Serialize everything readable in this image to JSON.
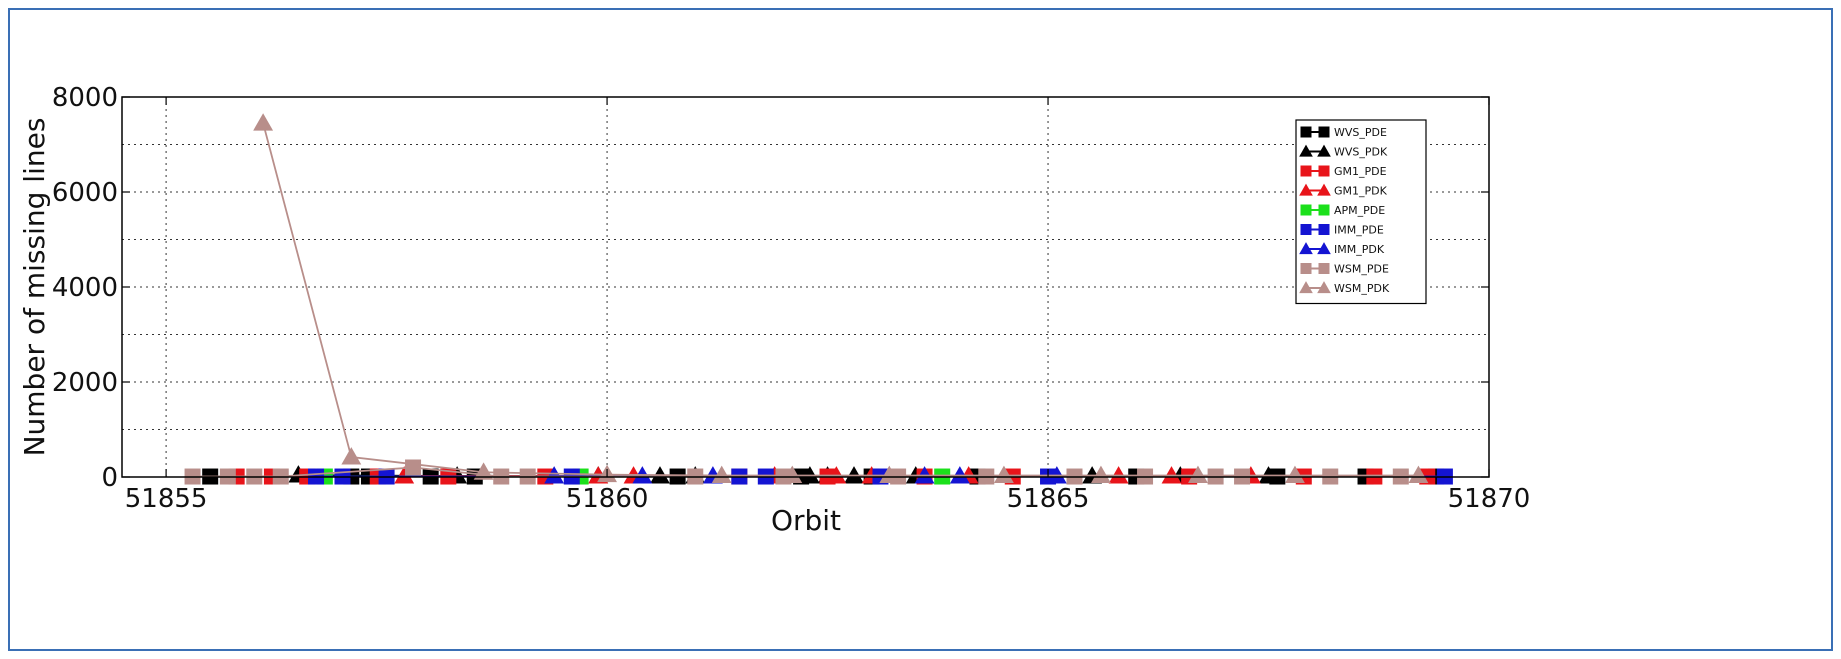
{
  "chart_data": {
    "type": "line",
    "title": "",
    "xlabel": "Orbit",
    "ylabel": "Number of missing lines",
    "xlim": [
      51854.5,
      51870
    ],
    "ylim": [
      0,
      8000
    ],
    "xticks": [
      51855,
      51860,
      51865,
      51870
    ],
    "xtick_labels": [
      "51855",
      "51860",
      "51865",
      "51870"
    ],
    "yticks": [
      0,
      2000,
      4000,
      6000,
      8000
    ],
    "ytick_labels": [
      "0",
      "2000",
      "4000",
      "6000",
      "8000"
    ],
    "grid": true,
    "legend_position": "top-right",
    "series": [
      {
        "name": "WVS_PDE",
        "color": "#000000",
        "marker": "square",
        "x": [
          51855.5,
          51857.1,
          51857.3,
          51858.0,
          51858.5,
          51860.8,
          51862.2,
          51863.0,
          51864.2,
          51866.0,
          51867.6,
          51868.6,
          51869.4
        ],
        "y": [
          10,
          10,
          10,
          10,
          10,
          10,
          10,
          10,
          10,
          10,
          10,
          10,
          10
        ]
      },
      {
        "name": "WVS_PDK",
        "color": "#000000",
        "marker": "triangle",
        "x": [
          51856.5,
          51858.3,
          51859.9,
          51860.6,
          51861.0,
          51862.3,
          51862.5,
          51862.8,
          51863.5,
          51865.5,
          51866.5,
          51867.5
        ],
        "y": [
          40,
          20,
          20,
          20,
          20,
          20,
          20,
          20,
          20,
          20,
          20,
          20
        ]
      },
      {
        "name": "GM1_PDE",
        "color": "#e8141a",
        "marker": "square",
        "x": [
          51855.8,
          51856.2,
          51856.6,
          51857.4,
          51858.2,
          51859.3,
          51861.5,
          51862.5,
          51863.6,
          51864.6,
          51866.6,
          51867.9,
          51868.7,
          51869.3
        ],
        "y": [
          10,
          10,
          10,
          10,
          10,
          10,
          10,
          10,
          10,
          10,
          10,
          10,
          10,
          10
        ]
      },
      {
        "name": "GM1_PDK",
        "color": "#e8141a",
        "marker": "triangle",
        "x": [
          51857.7,
          51859.9,
          51860.3,
          51861.9,
          51862.6,
          51863.0,
          51864.1,
          51865.8,
          51866.4,
          51867.3
        ],
        "y": [
          20,
          20,
          20,
          20,
          20,
          20,
          20,
          20,
          20,
          20
        ]
      },
      {
        "name": "APM_PDE",
        "color": "#1be01b",
        "marker": "square",
        "x": [
          51856.8,
          51859.7,
          51863.8
        ],
        "y": [
          10,
          10,
          10
        ]
      },
      {
        "name": "IMM_PDE",
        "color": "#1414d2",
        "marker": "square",
        "x": [
          51856.7,
          51857.0,
          51857.5,
          51859.6,
          51861.5,
          51861.8,
          51863.1,
          51865.0,
          51869.5
        ],
        "y": [
          10,
          10,
          10,
          10,
          10,
          10,
          10,
          10,
          10
        ]
      },
      {
        "name": "IMM_PDK",
        "color": "#1414d2",
        "marker": "triangle",
        "x": [
          51859.4,
          51860.4,
          51861.2,
          51863.6,
          51864.0,
          51865.1
        ],
        "y": [
          20,
          20,
          20,
          20,
          20,
          20
        ]
      },
      {
        "name": "WSM_PDE",
        "color": "#b88e8a",
        "marker": "square",
        "x": [
          51855.3,
          51855.7,
          51856.0,
          51856.3,
          51857.8,
          51858.8,
          51859.1,
          51861.0,
          51862.0,
          51863.3,
          51864.3,
          51865.3,
          51866.1,
          51866.9,
          51867.2,
          51868.2,
          51869.0
        ],
        "y": [
          10,
          10,
          10,
          10,
          200,
          10,
          10,
          10,
          10,
          10,
          10,
          10,
          10,
          10,
          10,
          10,
          10
        ]
      },
      {
        "name": "WSM_PDK",
        "color": "#b88e8a",
        "marker": "triangle",
        "x": [
          51856.1,
          51857.1,
          51858.6,
          51860.0,
          51861.3,
          51862.1,
          51863.2,
          51864.5,
          51865.6,
          51866.7,
          51867.8,
          51869.2
        ],
        "y": [
          7450,
          420,
          100,
          50,
          30,
          30,
          30,
          30,
          30,
          30,
          30,
          30
        ]
      }
    ]
  }
}
